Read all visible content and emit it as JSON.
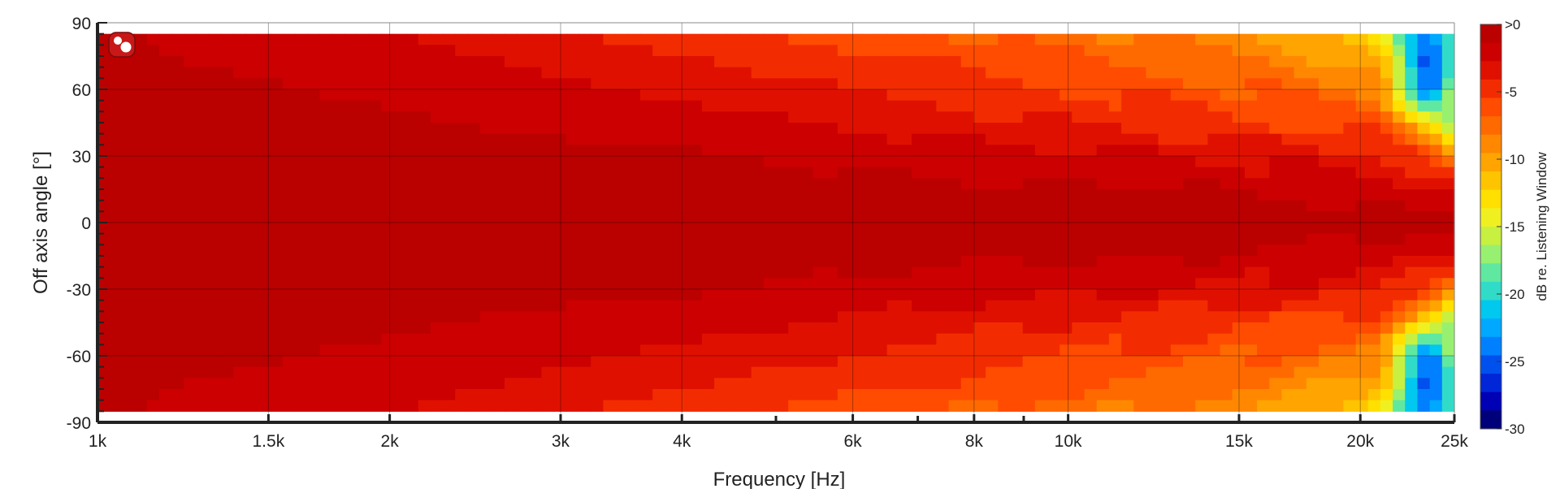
{
  "chart_data": {
    "type": "heatmap",
    "title": "",
    "xlabel": "Frequency [Hz]",
    "ylabel": "Off axis angle [°]",
    "colorbar_label": "dB re. Listening Window",
    "x_scale": "log",
    "xlim": [
      1000,
      25000
    ],
    "ylim": [
      -90,
      90
    ],
    "data_angle_range": [
      -85,
      85
    ],
    "x_ticks": [
      1000,
      1500,
      2000,
      3000,
      4000,
      6000,
      8000,
      10000,
      15000,
      20000,
      25000
    ],
    "x_tick_labels": [
      "1k",
      "1.5k",
      "2k",
      "3k",
      "4k",
      "6k",
      "8k",
      "10k",
      "15k",
      "20k",
      "25k"
    ],
    "y_ticks": [
      90,
      60,
      30,
      0,
      -30,
      -60,
      -90
    ],
    "y_tick_labels": [
      "90",
      "60",
      "30",
      "0",
      "-30",
      "-60",
      "-90"
    ],
    "colorbar_ticks": [
      0,
      -5,
      -10,
      -15,
      -20,
      -25,
      -30
    ],
    "colorbar_tick_labels": [
      ">0",
      "-5",
      "-10",
      "-15",
      "-20",
      "-25",
      "-30"
    ],
    "colorbar_range": [
      -30,
      0
    ],
    "grid": true,
    "legend": "colorbar right",
    "colors": [
      "#00007a",
      "#0000b4",
      "#0026d8",
      "#0050ee",
      "#0080ff",
      "#00a8ff",
      "#00c8ee",
      "#30dcc8",
      "#60e8a0",
      "#98f070",
      "#c8f040",
      "#f0f020",
      "#ffe000",
      "#ffc400",
      "#ffa400",
      "#ff8800",
      "#ff6a00",
      "#ff4c00",
      "#f22c00",
      "#e01000",
      "#cc0000",
      "#bb0000"
    ],
    "approx_level_by_angle": {
      "angles_deg": [
        0,
        15,
        30,
        45,
        60,
        75,
        85
      ],
      "frequencies_hz": [
        1000,
        2000,
        4000,
        8000,
        12000,
        16000,
        21000,
        23500,
        25000
      ],
      "levels_db": [
        [
          0,
          0,
          0,
          0,
          0,
          0,
          0,
          0,
          0
        ],
        [
          0,
          0,
          0,
          -0.5,
          -0.5,
          -1,
          -1.5,
          -2,
          -1
        ],
        [
          0,
          0,
          -0.5,
          -1.5,
          -2,
          -2.5,
          -3,
          -6,
          -10
        ],
        [
          0,
          -0.5,
          -1.5,
          -3,
          -4,
          -5,
          -6,
          -12,
          -18
        ],
        [
          0,
          -1,
          -2.5,
          -4.5,
          -5.5,
          -6.5,
          -8,
          -28,
          -16
        ],
        [
          -0.5,
          -1.5,
          -3.5,
          -5.5,
          -7,
          -8,
          -11,
          -26,
          -18
        ],
        [
          -0.5,
          -2,
          -4.5,
          -6.5,
          -8,
          -9,
          -13,
          -24,
          -19
        ]
      ]
    }
  },
  "badge_icon": "speaker-logo-icon"
}
